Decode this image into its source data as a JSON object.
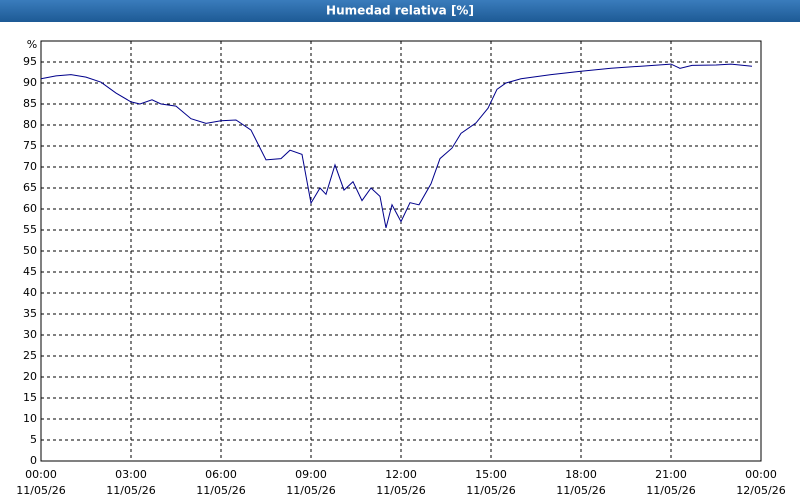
{
  "chart_data": {
    "type": "line",
    "title": "Humedad relativa [%]",
    "y_unit_label": "%",
    "x": [
      0,
      0.5,
      1,
      1.5,
      2,
      2.5,
      3,
      3.3,
      3.7,
      4,
      4.5,
      5,
      5.5,
      6,
      6.5,
      7,
      7.5,
      8,
      8.3,
      8.7,
      9,
      9.3,
      9.5,
      9.8,
      10.1,
      10.4,
      10.7,
      11,
      11.3,
      11.5,
      11.7,
      12,
      12.3,
      12.6,
      13,
      13.3,
      13.7,
      14,
      14.5,
      14.9,
      15.2,
      15.5,
      16,
      17,
      18,
      19,
      20,
      21,
      21.3,
      21.7,
      22.5,
      23,
      23.7
    ],
    "series": [
      {
        "name": "Humedad relativa",
        "color": "#00008b",
        "values": [
          91,
          91.7,
          92,
          91.4,
          90.2,
          87.6,
          85.5,
          85,
          86,
          85,
          84.5,
          81.5,
          80.4,
          81,
          81.2,
          78.8,
          71.7,
          72,
          74,
          73,
          61.4,
          65,
          63.5,
          70.5,
          64.5,
          66.5,
          62,
          65,
          63,
          55.5,
          61,
          57,
          61.5,
          61,
          66,
          72,
          74.5,
          78,
          80.5,
          84,
          88.5,
          90,
          91,
          92,
          92.8,
          93.5,
          94,
          94.5,
          93.5,
          94.2,
          94.3,
          94.5,
          94
        ]
      }
    ],
    "xlim": [
      0,
      24
    ],
    "ylim": [
      0,
      100
    ],
    "xticks": [
      {
        "value": 0,
        "label": "00:00",
        "date": "11/05/26"
      },
      {
        "value": 3,
        "label": "03:00",
        "date": "11/05/26"
      },
      {
        "value": 6,
        "label": "06:00",
        "date": "11/05/26"
      },
      {
        "value": 9,
        "label": "09:00",
        "date": "11/05/26"
      },
      {
        "value": 12,
        "label": "12:00",
        "date": "11/05/26"
      },
      {
        "value": 15,
        "label": "15:00",
        "date": "11/05/26"
      },
      {
        "value": 18,
        "label": "18:00",
        "date": "11/05/26"
      },
      {
        "value": 21,
        "label": "21:00",
        "date": "11/05/26"
      },
      {
        "value": 24,
        "label": "00:00",
        "date": "12/05/26"
      }
    ],
    "yticks": [
      0,
      5,
      10,
      15,
      20,
      25,
      30,
      35,
      40,
      45,
      50,
      55,
      60,
      65,
      70,
      75,
      80,
      85,
      90,
      95
    ],
    "grid": true
  }
}
